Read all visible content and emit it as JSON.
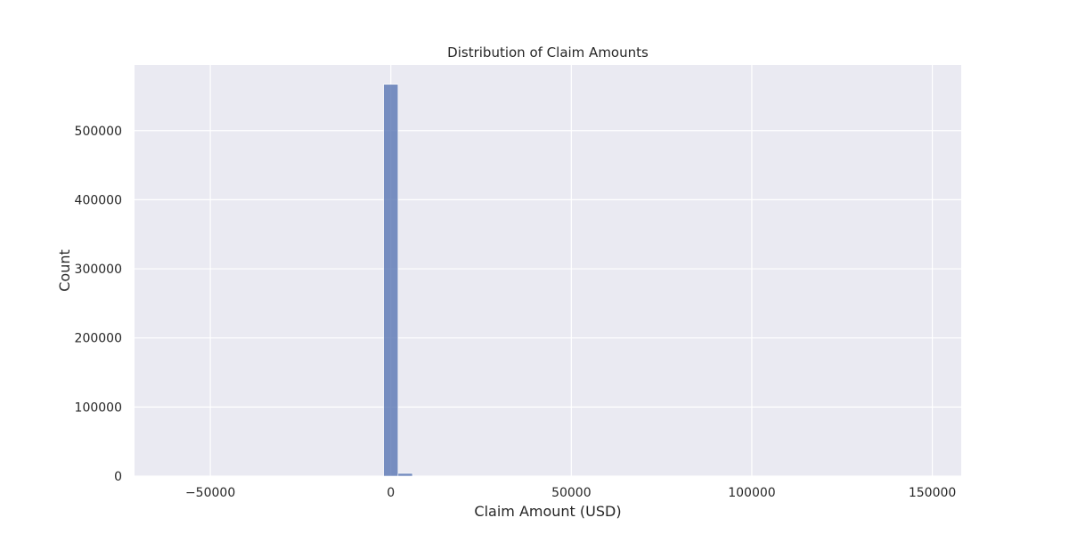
{
  "chart_data": {
    "type": "bar",
    "title": "Distribution of Claim Amounts",
    "xlabel": "Claim Amount (USD)",
    "ylabel": "Count",
    "xlim": [
      -71000,
      158000
    ],
    "ylim": [
      0,
      595000
    ],
    "x_ticks": [
      -50000,
      0,
      50000,
      100000,
      150000
    ],
    "x_tick_labels": [
      "−50000",
      "0",
      "50000",
      "100000",
      "150000"
    ],
    "y_ticks": [
      0,
      100000,
      200000,
      300000,
      400000,
      500000
    ],
    "y_tick_labels": [
      "0",
      "100000",
      "200000",
      "300000",
      "400000",
      "500000"
    ],
    "grid": true,
    "bar_color": "#5975b3",
    "background_color": "#eaeaf2",
    "bins": [
      {
        "x0": -2000,
        "x1": 2000,
        "count": 567000
      },
      {
        "x0": 2000,
        "x1": 6000,
        "count": 4000
      }
    ]
  }
}
